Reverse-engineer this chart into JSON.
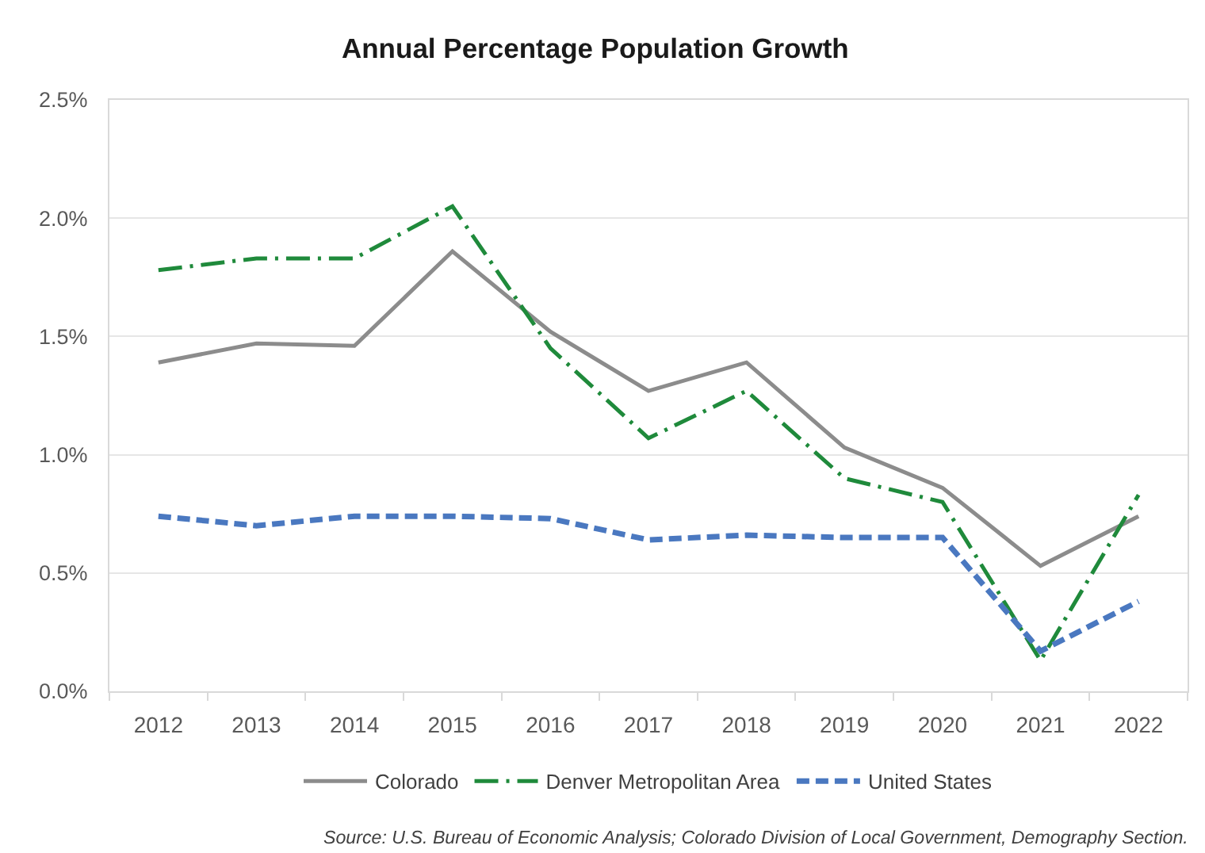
{
  "chart_data": {
    "type": "line",
    "title": "Annual Percentage Population Growth",
    "categories": [
      "2012",
      "2013",
      "2014",
      "2015",
      "2016",
      "2017",
      "2018",
      "2019",
      "2020",
      "2021",
      "2022"
    ],
    "series": [
      {
        "name": "Colorado",
        "color": "#8c8c8c",
        "line_style": "solid",
        "values": [
          1.39,
          1.47,
          1.46,
          1.86,
          1.52,
          1.27,
          1.39,
          1.03,
          0.86,
          0.53,
          0.74
        ]
      },
      {
        "name": "Denver Metropolitan Area",
        "color": "#1f8a3b",
        "line_style": "dashdot",
        "values": [
          1.78,
          1.83,
          1.83,
          2.05,
          1.45,
          1.07,
          1.27,
          0.9,
          0.8,
          0.13,
          0.83
        ]
      },
      {
        "name": "United States",
        "color": "#4a78c0",
        "line_style": "dashed",
        "values": [
          0.74,
          0.7,
          0.74,
          0.74,
          0.73,
          0.64,
          0.66,
          0.65,
          0.65,
          0.17,
          0.38
        ]
      }
    ],
    "ylim": [
      0,
      2.5
    ],
    "yticks": [
      {
        "value": 0,
        "label": "0.0%"
      },
      {
        "value": 0.5,
        "label": "0.5%"
      },
      {
        "value": 1,
        "label": "1.0%"
      },
      {
        "value": 1.5,
        "label": "1.5%"
      },
      {
        "value": 2,
        "label": "2.0%"
      },
      {
        "value": 2.5,
        "label": "2.5%"
      }
    ],
    "grid": "y",
    "legend": "bottom",
    "annotations": [
      "Source: U.S. Bureau of Economic Analysis; Colorado Division of Local Government, Demography Section."
    ]
  }
}
